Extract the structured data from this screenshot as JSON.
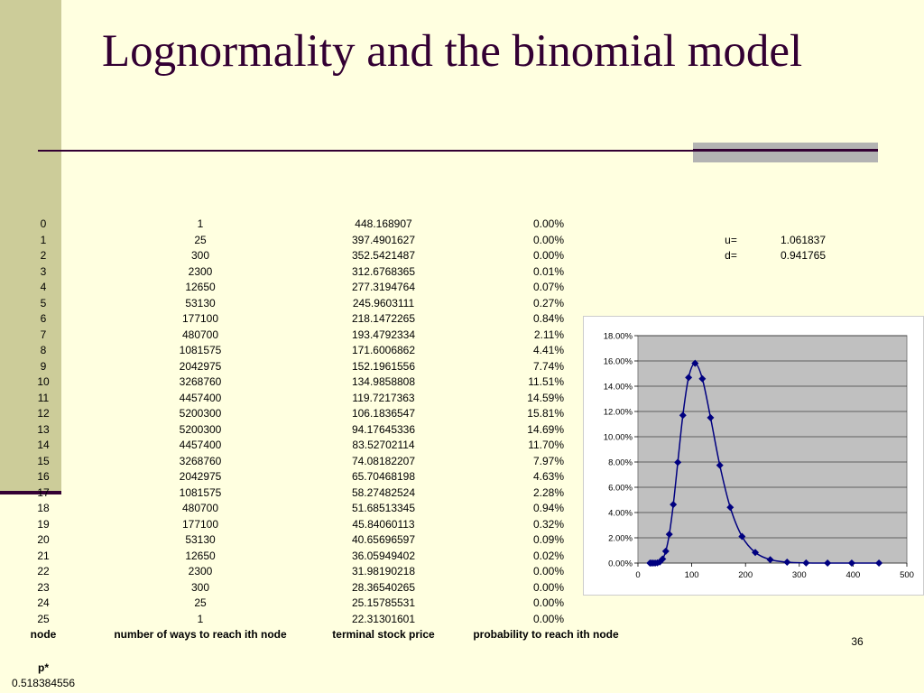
{
  "slide": {
    "title": "Lognormality and the binomial model",
    "number": "36"
  },
  "params": [
    {
      "label": "u=",
      "value": "1.061837"
    },
    {
      "label": "d=",
      "value": "0.941765"
    }
  ],
  "pstar": {
    "label": "p*",
    "value": "0.518384556"
  },
  "table": {
    "headers": [
      "node",
      "number of ways to reach ith node",
      "terminal stock price",
      "probability to reach ith node"
    ],
    "rows": [
      [
        "0",
        "1",
        "448.168907",
        "0.00%"
      ],
      [
        "1",
        "25",
        "397.4901627",
        "0.00%"
      ],
      [
        "2",
        "300",
        "352.5421487",
        "0.00%"
      ],
      [
        "3",
        "2300",
        "312.6768365",
        "0.01%"
      ],
      [
        "4",
        "12650",
        "277.3194764",
        "0.07%"
      ],
      [
        "5",
        "53130",
        "245.9603111",
        "0.27%"
      ],
      [
        "6",
        "177100",
        "218.1472265",
        "0.84%"
      ],
      [
        "7",
        "480700",
        "193.4792334",
        "2.11%"
      ],
      [
        "8",
        "1081575",
        "171.6006862",
        "4.41%"
      ],
      [
        "9",
        "2042975",
        "152.1961556",
        "7.74%"
      ],
      [
        "10",
        "3268760",
        "134.9858808",
        "11.51%"
      ],
      [
        "11",
        "4457400",
        "119.7217363",
        "14.59%"
      ],
      [
        "12",
        "5200300",
        "106.1836547",
        "15.81%"
      ],
      [
        "13",
        "5200300",
        "94.17645336",
        "14.69%"
      ],
      [
        "14",
        "4457400",
        "83.52702114",
        "11.70%"
      ],
      [
        "15",
        "3268760",
        "74.08182207",
        "7.97%"
      ],
      [
        "16",
        "2042975",
        "65.70468198",
        "4.63%"
      ],
      [
        "17",
        "1081575",
        "58.27482524",
        "2.28%"
      ],
      [
        "18",
        "480700",
        "51.68513345",
        "0.94%"
      ],
      [
        "19",
        "177100",
        "45.84060113",
        "0.32%"
      ],
      [
        "20",
        "53130",
        "40.65696597",
        "0.09%"
      ],
      [
        "21",
        "12650",
        "36.05949402",
        "0.02%"
      ],
      [
        "22",
        "2300",
        "31.98190218",
        "0.00%"
      ],
      [
        "23",
        "300",
        "28.36540265",
        "0.00%"
      ],
      [
        "24",
        "25",
        "25.15785531",
        "0.00%"
      ],
      [
        "25",
        "1",
        "22.31301601",
        "0.00%"
      ]
    ]
  },
  "colors": {
    "background": "#ffffe0",
    "accent_bar": "#cccc99",
    "title": "#330033",
    "plot_area": "#c0c0c0",
    "series": "#000080"
  },
  "chart_data": {
    "type": "scatter",
    "title": "",
    "xlabel": "",
    "ylabel": "",
    "xlim": [
      0,
      500
    ],
    "ylim": [
      0,
      18
    ],
    "x_ticks": [
      "0",
      "100",
      "200",
      "300",
      "400",
      "500"
    ],
    "y_ticks": [
      "0.00%",
      "2.00%",
      "4.00%",
      "6.00%",
      "8.00%",
      "10.00%",
      "12.00%",
      "14.00%",
      "16.00%",
      "18.00%"
    ],
    "grid": "horizontal",
    "legend": "none",
    "series": [
      {
        "marker": "diamond",
        "line": "smooth",
        "x": [
          448.168907,
          397.4901627,
          352.5421487,
          312.6768365,
          277.3194764,
          245.9603111,
          218.1472265,
          193.4792334,
          171.6006862,
          152.1961556,
          134.9858808,
          119.7217363,
          106.1836547,
          94.17645336,
          83.52702114,
          74.08182207,
          65.70468198,
          58.27482524,
          51.68513345,
          45.84060113,
          40.65696597,
          36.05949402,
          31.98190218,
          28.36540265,
          25.15785531,
          22.31301601
        ],
        "y": [
          0.0,
          0.0,
          0.0,
          0.01,
          0.07,
          0.27,
          0.84,
          2.11,
          4.41,
          7.74,
          11.51,
          14.59,
          15.81,
          14.69,
          11.7,
          7.97,
          4.63,
          2.28,
          0.94,
          0.32,
          0.09,
          0.02,
          0.0,
          0.0,
          0.0,
          0.0
        ]
      }
    ]
  }
}
